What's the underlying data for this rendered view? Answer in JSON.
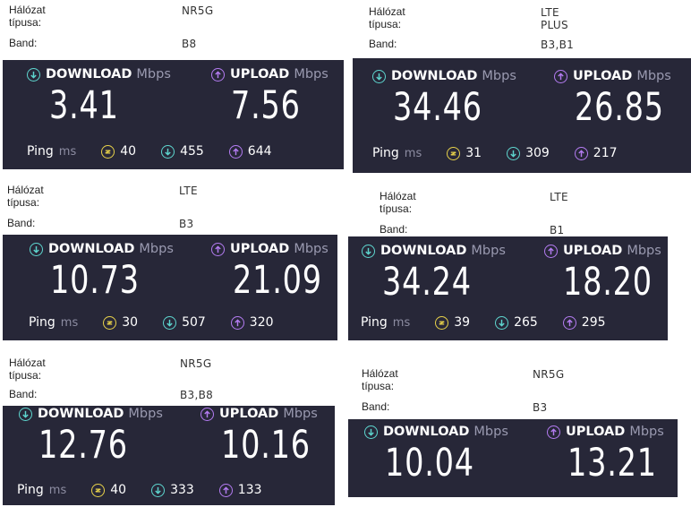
{
  "labels": {
    "network_type": "Hálózat típusa:",
    "band": "Band:",
    "download": "DOWNLOAD",
    "upload": "UPLOAD",
    "unit": "Mbps",
    "ping": "Ping",
    "ping_unit": "ms"
  },
  "icons": {
    "download": "arrow-down-circle-icon",
    "upload": "arrow-up-circle-icon",
    "ping": "jitter-circle-icon"
  },
  "colors": {
    "panel": "#272738",
    "download": "#5ed6cf",
    "upload": "#b47cf2",
    "ping": "#e8d24a"
  },
  "results": [
    {
      "network": "NR5G",
      "band": "B8",
      "download": "3.41",
      "upload": "7.56",
      "ping": "40",
      "ping_down": "455",
      "ping_up": "644"
    },
    {
      "network": "LTE PLUS",
      "band": "B3,B1",
      "download": "34.46",
      "upload": "26.85",
      "ping": "31",
      "ping_down": "309",
      "ping_up": "217"
    },
    {
      "network": "LTE",
      "band": "B3",
      "download": "10.73",
      "upload": "21.09",
      "ping": "30",
      "ping_down": "507",
      "ping_up": "320"
    },
    {
      "network": "LTE",
      "band": "B1",
      "download": "34.24",
      "upload": "18.20",
      "ping": "39",
      "ping_down": "265",
      "ping_up": "295"
    },
    {
      "network": "NR5G",
      "band": "B3,B8",
      "download": "12.76",
      "upload": "10.16",
      "ping": "40",
      "ping_down": "333",
      "ping_up": "133"
    },
    {
      "network": "NR5G",
      "band": "B3",
      "download": "10.04",
      "upload": "13.21"
    }
  ]
}
